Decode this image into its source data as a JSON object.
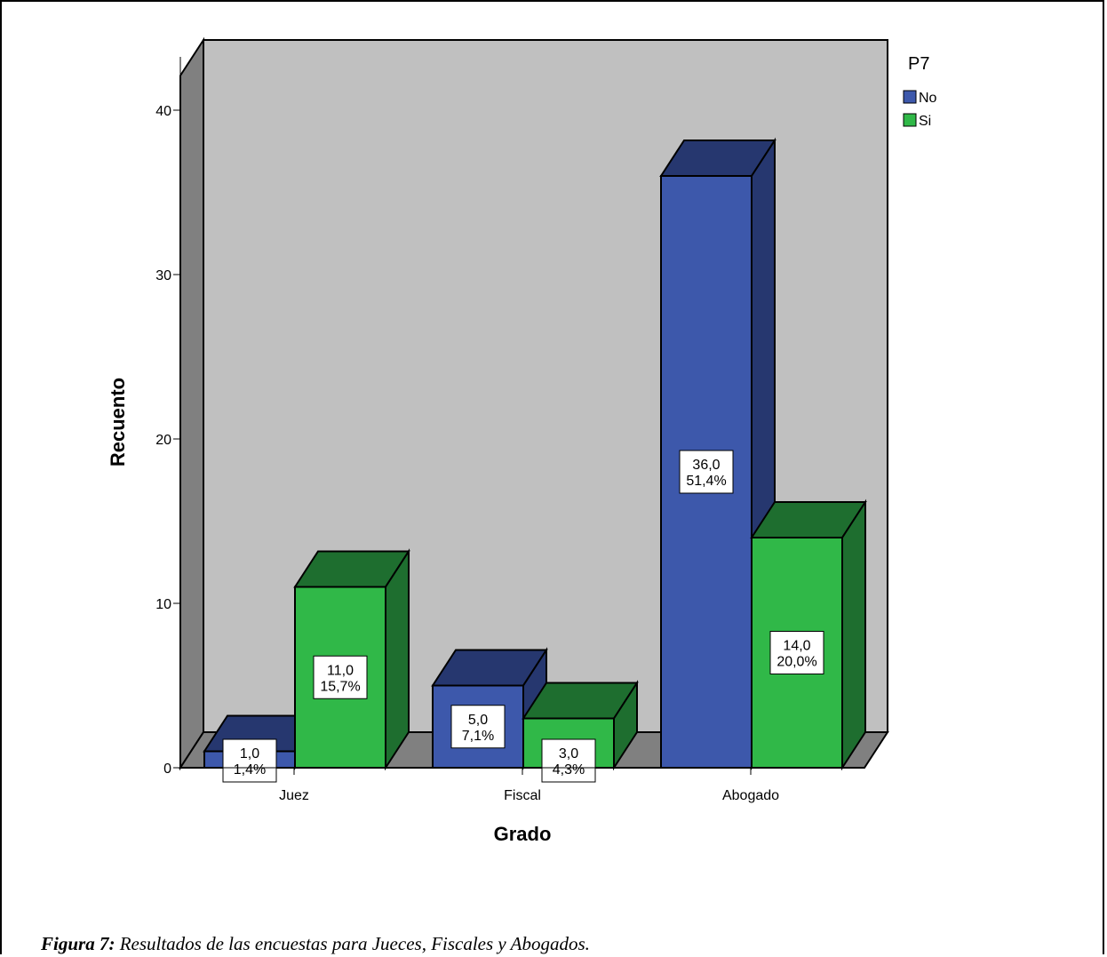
{
  "chart_data": {
    "type": "bar",
    "style": "3d-clustered",
    "categories": [
      "Juez",
      "Fiscal",
      "Abogado"
    ],
    "series": [
      {
        "name": "No",
        "values": [
          1.0,
          5.0,
          36.0
        ],
        "labels": [
          [
            "1,0",
            "1,4%"
          ],
          [
            "5,0",
            "7,1%"
          ],
          [
            "36,0",
            "51,4%"
          ]
        ]
      },
      {
        "name": "Si",
        "values": [
          11.0,
          3.0,
          14.0
        ],
        "labels": [
          [
            "11,0",
            "15,7%"
          ],
          [
            "3,0",
            "4,3%"
          ],
          [
            "14,0",
            "20,0%"
          ]
        ]
      }
    ],
    "xlabel": "Grado",
    "ylabel": "Recuento",
    "yticks": [
      "0",
      "10",
      "20",
      "30",
      "40"
    ],
    "ylim": [
      0,
      40
    ],
    "legend": {
      "title": "P7",
      "position": "top-right"
    },
    "grid": false
  },
  "colors": {
    "No": {
      "front": "#3d58ab",
      "top": "#26376f",
      "side": "#26376f"
    },
    "Si": {
      "front": "#30b848",
      "top": "#1e6e2f",
      "side": "#1e6e2f"
    },
    "back_wall": "#c0c0c0",
    "side_wall": "#808080",
    "floor": "#808080"
  },
  "caption": {
    "label": "Figura 7:",
    "text": " Resultados de las encuestas para Jueces, Fiscales y Abogados."
  }
}
